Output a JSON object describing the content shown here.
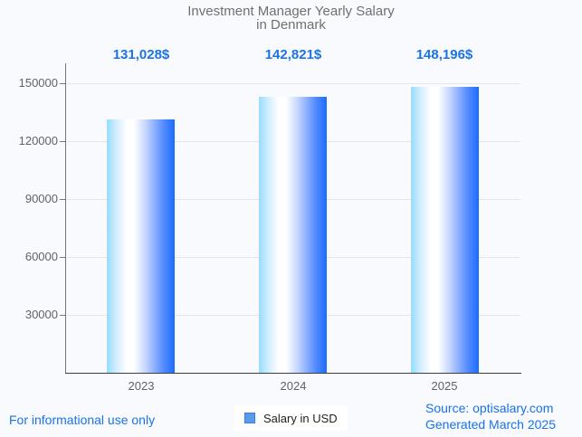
{
  "chart": {
    "title_line1": "Investment Manager Yearly Salary",
    "title_line2": "in Denmark",
    "legend_label": "Salary in USD"
  },
  "chart_data": {
    "type": "bar",
    "title": "Investment Manager Yearly Salary in Denmark",
    "categories": [
      "2023",
      "2024",
      "2025"
    ],
    "series": [
      {
        "name": "Salary in USD",
        "values": [
          131028,
          142821,
          148196
        ]
      }
    ],
    "value_labels": [
      "131,028$",
      "142,821$",
      "148,196$"
    ],
    "xlabel": "",
    "ylabel": "",
    "ylim": [
      0,
      160000
    ],
    "y_ticks": [
      30000,
      60000,
      90000,
      120000,
      150000
    ],
    "y_tick_labels": [
      "30000",
      "60000",
      "90000",
      "120000",
      "150000"
    ],
    "grid": true,
    "legend_position": "bottom"
  },
  "footer": {
    "left_note": "For informational use only",
    "source_line": "Source: optisalary.com",
    "generated_line": "Generated March 2025"
  },
  "colors": {
    "background": "#f8fafd",
    "accent_blue": "#1a73e8",
    "title_gray": "#707070",
    "axis_label_gray": "#5f6368",
    "axis_line": "#767676",
    "baseline": "#3d3d3d",
    "gridline": "#e3e6ea",
    "legend_text": "#1f1f1f",
    "legend_swatch_fill": "#5b9bea",
    "legend_swatch_border": "#3d7dd6",
    "bar_gradient": [
      "#97dcfd",
      "#d9f0fe",
      "#ffffff",
      "#ffffff",
      "#ccdcfe",
      "#8fb1fe",
      "#4f88fd",
      "#1a6dfc"
    ]
  }
}
